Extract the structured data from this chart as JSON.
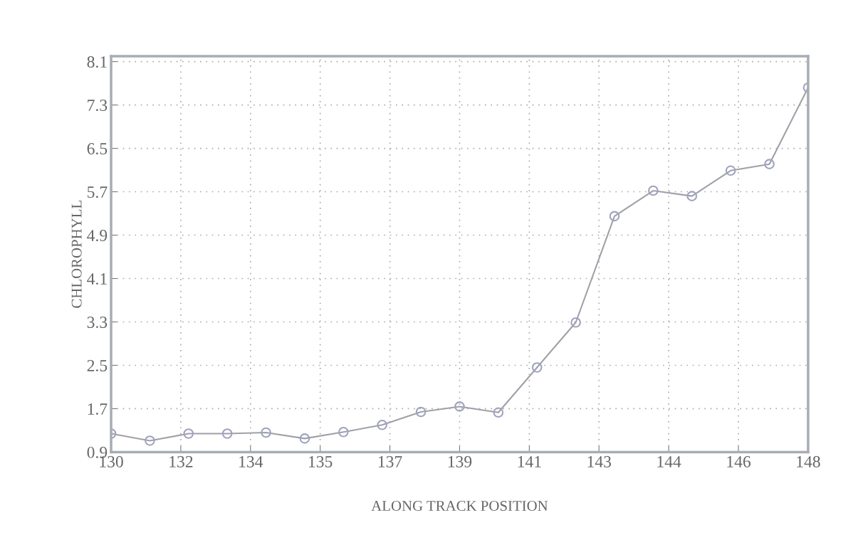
{
  "chart_data": {
    "type": "line",
    "xlabel": "ALONG TRACK POSITION",
    "ylabel": "CHLOROPHYLL",
    "x": [
      130,
      131,
      132,
      133,
      134,
      135,
      136,
      137,
      138,
      139,
      140,
      141,
      142,
      143,
      144,
      145,
      146,
      147,
      148
    ],
    "series": [
      {
        "color": "#9fa3bf",
        "values": [
          1.24,
          1.11,
          1.24,
          1.24,
          1.26,
          1.15,
          1.27,
          1.4,
          1.64,
          1.74,
          1.63,
          2.46,
          3.29,
          5.25,
          5.72,
          5.62,
          6.09,
          6.21,
          7.62
        ]
      }
    ],
    "xlim": [
      130,
      148
    ],
    "xticks": [
      130,
      {
        "value": 131.8,
        "label": "132"
      },
      {
        "value": 133.6,
        "label": "134"
      },
      {
        "value": 135.4,
        "label": "135"
      },
      {
        "value": 137.2,
        "label": "137"
      },
      139,
      {
        "value": 140.8,
        "label": "141"
      },
      {
        "value": 142.6,
        "label": "143"
      },
      {
        "value": 144.4,
        "label": "144"
      },
      {
        "value": 146.2,
        "label": "146"
      },
      148
    ],
    "ylim": [
      0.9,
      8.2
    ],
    "yticks": [
      0.9,
      1.7,
      2.5,
      3.3,
      4.1,
      4.9,
      5.7,
      6.5,
      7.3,
      8.1
    ],
    "grid": true,
    "marker": "circle",
    "line_style": "solid"
  }
}
